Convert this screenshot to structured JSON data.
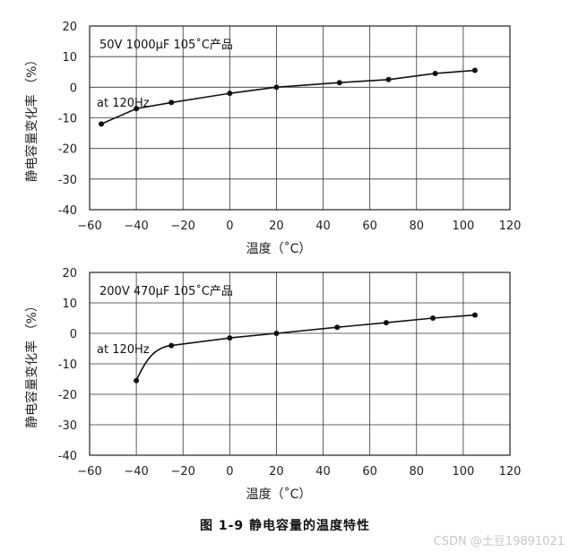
{
  "chart_data": [
    {
      "type": "line",
      "annotation_top": "50V 1000μF 105˚C产品",
      "annotation_freq": "at 120Hz",
      "xlabel": "温度（˚C）",
      "ylabel": "静电容量变化率 （%）",
      "xlim": [
        -60,
        120
      ],
      "ylim": [
        -40,
        20
      ],
      "xticks": [
        -60,
        -40,
        -20,
        0,
        20,
        40,
        60,
        80,
        100,
        120
      ],
      "yticks": [
        20,
        10,
        0,
        -10,
        -20,
        -30,
        -40
      ],
      "grid": true,
      "x": [
        -55,
        -40,
        -25,
        0,
        20,
        47,
        68,
        88,
        105
      ],
      "y": [
        -12,
        -7,
        -5,
        -2,
        0,
        1.5,
        2.5,
        4.5,
        5.5
      ]
    },
    {
      "type": "line",
      "annotation_top": "200V 470μF 105˚C产品",
      "annotation_freq": "at 120Hz",
      "xlabel": "温度（˚C）",
      "ylabel": "静电容量变化率 （%）",
      "xlim": [
        -60,
        120
      ],
      "ylim": [
        -40,
        20
      ],
      "xticks": [
        -60,
        -40,
        -20,
        0,
        20,
        40,
        60,
        80,
        100,
        120
      ],
      "yticks": [
        20,
        10,
        0,
        -10,
        -20,
        -30,
        -40
      ],
      "grid": true,
      "x": [
        -40,
        -25,
        0,
        20,
        46,
        67,
        87,
        105
      ],
      "y": [
        -15.5,
        -4,
        -1.5,
        0,
        2,
        3.5,
        5,
        6
      ],
      "smooth_segments": [
        0
      ]
    }
  ],
  "caption": "图 1-9   静电容量的温度特性",
  "watermark": "CSDN @土豆19891021"
}
